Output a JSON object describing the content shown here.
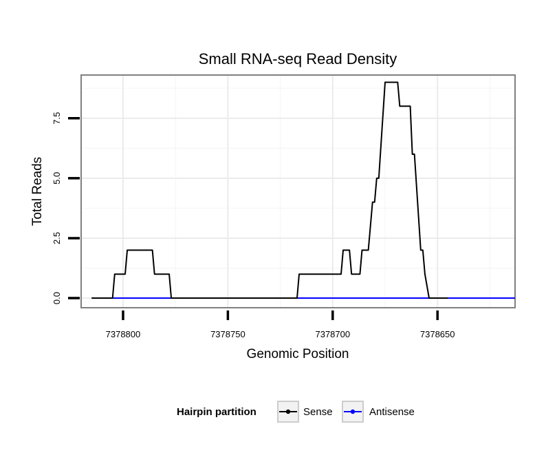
{
  "chart_data": {
    "type": "line",
    "title": "Small RNA-seq Read Density",
    "xlabel": "Genomic Position",
    "ylabel": "Total Reads",
    "x_reversed": true,
    "xlim": [
      7378820,
      7378613
    ],
    "ylim": [
      -0.4,
      9.3
    ],
    "x_ticks": [
      7378800,
      7378750,
      7378700,
      7378650
    ],
    "x_tick_labels": [
      "7378800",
      "7378750",
      "7378700",
      "7378650"
    ],
    "y_ticks": [
      0,
      2.5,
      5,
      7.5
    ],
    "y_tick_labels": [
      "0.0",
      "2.5",
      "5.0",
      "7.5"
    ],
    "grid": true,
    "legend": {
      "title": "Hairpin partition",
      "position": "bottom",
      "entries": [
        "Sense",
        "Antisense"
      ]
    },
    "series": [
      {
        "name": "Sense",
        "color": "#000000",
        "x": [
          7378815,
          7378805,
          7378804,
          7378799,
          7378798,
          7378786,
          7378785,
          7378778,
          7378777,
          7378768,
          7378717,
          7378716,
          7378696,
          7378695,
          7378692,
          7378691,
          7378687,
          7378686,
          7378683,
          7378682,
          7378681,
          7378680,
          7378679,
          7378678,
          7378675,
          7378669,
          7378668,
          7378663,
          7378662,
          7378661,
          7378658,
          7378657,
          7378656,
          7378654,
          7378652,
          7378651,
          7378650,
          7378649,
          7378648,
          7378646,
          7378645
        ],
        "y": [
          0,
          0,
          1,
          1,
          2,
          2,
          1,
          1,
          0,
          0,
          0,
          1,
          1,
          2,
          2,
          1,
          1,
          2,
          2,
          3,
          4,
          4,
          5,
          5,
          9,
          9,
          8,
          8,
          6,
          6,
          2,
          2,
          1,
          0,
          0,
          0,
          0,
          0,
          0,
          0,
          0
        ]
      },
      {
        "name": "Antisense",
        "color": "#0000ff",
        "x": [
          7378815,
          7378613
        ],
        "y": [
          0,
          0
        ]
      }
    ]
  }
}
